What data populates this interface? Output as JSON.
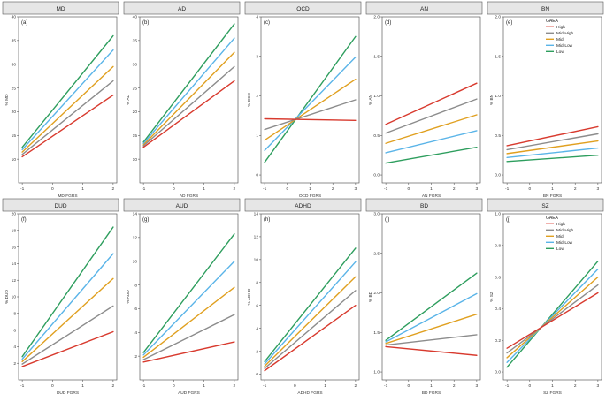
{
  "legend": {
    "title": "GAEA",
    "levels": [
      "High",
      "Mid-High",
      "Mid",
      "Mid-Low",
      "Low"
    ],
    "colors": [
      "#d83a2e",
      "#8c8c8c",
      "#e0a020",
      "#5ab4e8",
      "#2e9e5e"
    ]
  },
  "chart_data": [
    {
      "type": "line",
      "title": "MD",
      "tag": "(a)",
      "xlabel": "MD FGRS",
      "ylabel": "% MD",
      "xlim": [
        -1,
        2
      ],
      "ylim": [
        5,
        40
      ],
      "xticks": [
        -1,
        0,
        1,
        2
      ],
      "xtick_labels": [
        "-1",
        "0",
        "1",
        "2"
      ],
      "yticks": [
        10,
        15,
        20,
        25,
        30,
        35,
        40
      ],
      "ytick_labels": [
        "10",
        "15",
        "20",
        "25",
        "30",
        "35",
        "40"
      ],
      "series": [
        {
          "name": "High",
          "x": [
            -1,
            2
          ],
          "y": [
            10.5,
            23.5
          ]
        },
        {
          "name": "Mid-High",
          "x": [
            -1,
            2
          ],
          "y": [
            11.0,
            26.5
          ]
        },
        {
          "name": "Mid",
          "x": [
            -1,
            2
          ],
          "y": [
            11.5,
            29.5
          ]
        },
        {
          "name": "Mid-Low",
          "x": [
            -1,
            2
          ],
          "y": [
            12.0,
            33.0
          ]
        },
        {
          "name": "Low",
          "x": [
            -1,
            2
          ],
          "y": [
            12.5,
            36.0
          ]
        }
      ]
    },
    {
      "type": "line",
      "title": "AD",
      "tag": "(b)",
      "xlabel": "AD FGRS",
      "ylabel": "% AD",
      "xlim": [
        -1,
        2
      ],
      "ylim": [
        5,
        40
      ],
      "xticks": [
        -1,
        0,
        1,
        2
      ],
      "xtick_labels": [
        "-1",
        "0",
        "1",
        "2"
      ],
      "yticks": [
        10,
        15,
        20,
        25,
        30,
        35,
        40
      ],
      "ytick_labels": [
        "10",
        "15",
        "20",
        "25",
        "30",
        "35",
        "40"
      ],
      "series": [
        {
          "name": "High",
          "x": [
            -1,
            2
          ],
          "y": [
            12.5,
            26.5
          ]
        },
        {
          "name": "Mid-High",
          "x": [
            -1,
            2
          ],
          "y": [
            12.8,
            29.5
          ]
        },
        {
          "name": "Mid",
          "x": [
            -1,
            2
          ],
          "y": [
            13.0,
            32.5
          ]
        },
        {
          "name": "Mid-Low",
          "x": [
            -1,
            2
          ],
          "y": [
            13.3,
            35.5
          ]
        },
        {
          "name": "Low",
          "x": [
            -1,
            2
          ],
          "y": [
            13.6,
            38.5
          ]
        }
      ]
    },
    {
      "type": "line",
      "title": "OCD",
      "tag": "(c)",
      "xlabel": "OCD FGRS",
      "ylabel": "% OCD",
      "xlim": [
        -1,
        3
      ],
      "ylim": [
        -0.2,
        4
      ],
      "xticks": [
        -1,
        0,
        1,
        2,
        3
      ],
      "xtick_labels": [
        "-1",
        "0",
        "1",
        "2",
        "3"
      ],
      "yticks": [
        0,
        1,
        2,
        3,
        4
      ],
      "ytick_labels": [
        "0",
        "1",
        "2",
        "3",
        "4"
      ],
      "series": [
        {
          "name": "High",
          "x": [
            -1,
            3
          ],
          "y": [
            1.42,
            1.38
          ]
        },
        {
          "name": "Mid-High",
          "x": [
            -1,
            3
          ],
          "y": [
            1.15,
            1.9
          ]
        },
        {
          "name": "Mid",
          "x": [
            -1,
            3
          ],
          "y": [
            0.88,
            2.42
          ]
        },
        {
          "name": "Mid-Low",
          "x": [
            -1,
            3
          ],
          "y": [
            0.62,
            2.98
          ]
        },
        {
          "name": "Low",
          "x": [
            -1,
            3
          ],
          "y": [
            0.32,
            3.5
          ]
        }
      ]
    },
    {
      "type": "line",
      "title": "AN",
      "tag": "(d)",
      "xlabel": "AN FGRS",
      "ylabel": "% AN",
      "xlim": [
        -1,
        3
      ],
      "ylim": [
        -0.1,
        2.0
      ],
      "xticks": [
        -1,
        0,
        1,
        2,
        3
      ],
      "xtick_labels": [
        "-1",
        "0",
        "1",
        "2",
        "3"
      ],
      "yticks": [
        0.0,
        0.5,
        1.0,
        1.5,
        2.0
      ],
      "ytick_labels": [
        "0.0",
        "0.5",
        "1.0",
        "1.5",
        "2.0"
      ],
      "series": [
        {
          "name": "High",
          "x": [
            -1,
            3
          ],
          "y": [
            0.64,
            1.16
          ]
        },
        {
          "name": "Mid-High",
          "x": [
            -1,
            3
          ],
          "y": [
            0.53,
            0.96
          ]
        },
        {
          "name": "Mid",
          "x": [
            -1,
            3
          ],
          "y": [
            0.4,
            0.76
          ]
        },
        {
          "name": "Mid-Low",
          "x": [
            -1,
            3
          ],
          "y": [
            0.28,
            0.56
          ]
        },
        {
          "name": "Low",
          "x": [
            -1,
            3
          ],
          "y": [
            0.15,
            0.35
          ]
        }
      ]
    },
    {
      "type": "line",
      "title": "BN",
      "tag": "(e)",
      "xlabel": "BN FGRS",
      "ylabel": "% BN",
      "xlim": [
        -1,
        3
      ],
      "ylim": [
        -0.1,
        2.0
      ],
      "xticks": [
        -1,
        0,
        1,
        2,
        3
      ],
      "xtick_labels": [
        "-1",
        "0",
        "1",
        "2",
        "3"
      ],
      "yticks": [
        0.0,
        0.5,
        1.0,
        1.5,
        2.0
      ],
      "ytick_labels": [
        "0.0",
        "0.5",
        "1.0",
        "1.5",
        "2.0"
      ],
      "legend": true,
      "series": [
        {
          "name": "High",
          "x": [
            -1,
            3
          ],
          "y": [
            0.37,
            0.61
          ]
        },
        {
          "name": "Mid-High",
          "x": [
            -1,
            3
          ],
          "y": [
            0.32,
            0.52
          ]
        },
        {
          "name": "Mid",
          "x": [
            -1,
            3
          ],
          "y": [
            0.27,
            0.43
          ]
        },
        {
          "name": "Mid-Low",
          "x": [
            -1,
            3
          ],
          "y": [
            0.22,
            0.34
          ]
        },
        {
          "name": "Low",
          "x": [
            -1,
            3
          ],
          "y": [
            0.17,
            0.25
          ]
        }
      ]
    },
    {
      "type": "line",
      "title": "DUD",
      "tag": "(f)",
      "xlabel": "DUD FGRS",
      "ylabel": "% DUD",
      "xlim": [
        -1,
        2
      ],
      "ylim": [
        0,
        20
      ],
      "xticks": [
        -1,
        0,
        1,
        2
      ],
      "xtick_labels": [
        "-1",
        "0",
        "1",
        "2"
      ],
      "yticks": [
        2,
        4,
        6,
        8,
        10,
        12,
        14,
        16,
        18,
        20
      ],
      "ytick_labels": [
        "2",
        "4",
        "6",
        "8",
        "10",
        "12",
        "14",
        "16",
        "18",
        "20"
      ],
      "series": [
        {
          "name": "High",
          "x": [
            -1,
            2
          ],
          "y": [
            1.6,
            5.8
          ]
        },
        {
          "name": "Mid-High",
          "x": [
            -1,
            2
          ],
          "y": [
            1.9,
            8.9
          ]
        },
        {
          "name": "Mid",
          "x": [
            -1,
            2
          ],
          "y": [
            2.2,
            12.2
          ]
        },
        {
          "name": "Mid-Low",
          "x": [
            -1,
            2
          ],
          "y": [
            2.5,
            15.2
          ]
        },
        {
          "name": "Low",
          "x": [
            -1,
            2
          ],
          "y": [
            2.8,
            18.4
          ]
        }
      ]
    },
    {
      "type": "line",
      "title": "AUD",
      "tag": "(g)",
      "xlabel": "AUD FGRS",
      "ylabel": "% AUD",
      "xlim": [
        -1,
        2
      ],
      "ylim": [
        0,
        14
      ],
      "xticks": [
        -1,
        0,
        1,
        2
      ],
      "xtick_labels": [
        "-1",
        "0",
        "1",
        "2"
      ],
      "yticks": [
        2,
        4,
        6,
        8,
        10,
        12,
        14
      ],
      "ytick_labels": [
        "2",
        "4",
        "6",
        "8",
        "10",
        "12",
        "14"
      ],
      "series": [
        {
          "name": "High",
          "x": [
            -1,
            2
          ],
          "y": [
            1.5,
            3.2
          ]
        },
        {
          "name": "Mid-High",
          "x": [
            -1,
            2
          ],
          "y": [
            1.7,
            5.5
          ]
        },
        {
          "name": "Mid",
          "x": [
            -1,
            2
          ],
          "y": [
            1.9,
            7.8
          ]
        },
        {
          "name": "Mid-Low",
          "x": [
            -1,
            2
          ],
          "y": [
            2.1,
            10.0
          ]
        },
        {
          "name": "Low",
          "x": [
            -1,
            2
          ],
          "y": [
            2.3,
            12.3
          ]
        }
      ]
    },
    {
      "type": "line",
      "title": "ADHD",
      "tag": "(h)",
      "xlabel": "ADHD FGRS",
      "ylabel": "% ADHD",
      "xlim": [
        -1,
        2
      ],
      "ylim": [
        -0.5,
        14
      ],
      "xticks": [
        -1,
        0,
        1,
        2
      ],
      "xtick_labels": [
        "-1",
        "0",
        "1",
        "2"
      ],
      "yticks": [
        0,
        2,
        4,
        6,
        8,
        10,
        12,
        14
      ],
      "ytick_labels": [
        "0",
        "2",
        "4",
        "6",
        "8",
        "10",
        "12",
        "14"
      ],
      "series": [
        {
          "name": "High",
          "x": [
            -1,
            2
          ],
          "y": [
            0.3,
            6.0
          ]
        },
        {
          "name": "Mid-High",
          "x": [
            -1,
            2
          ],
          "y": [
            0.5,
            7.3
          ]
        },
        {
          "name": "Mid",
          "x": [
            -1,
            2
          ],
          "y": [
            0.7,
            8.5
          ]
        },
        {
          "name": "Mid-Low",
          "x": [
            -1,
            2
          ],
          "y": [
            0.9,
            9.8
          ]
        },
        {
          "name": "Low",
          "x": [
            -1,
            2
          ],
          "y": [
            1.1,
            11.0
          ]
        }
      ]
    },
    {
      "type": "line",
      "title": "BD",
      "tag": "(i)",
      "xlabel": "BD FGRS",
      "ylabel": "% BD",
      "xlim": [
        -1,
        3
      ],
      "ylim": [
        0.9,
        3.0
      ],
      "xticks": [
        -1,
        0,
        1,
        2,
        3
      ],
      "xtick_labels": [
        "-1",
        "0",
        "1",
        "2",
        "3"
      ],
      "yticks": [
        1.0,
        1.5,
        2.0,
        2.5,
        3.0
      ],
      "ytick_labels": [
        "1.0",
        "1.5",
        "2.0",
        "2.5",
        "3.0"
      ],
      "series": [
        {
          "name": "High",
          "x": [
            -1,
            3
          ],
          "y": [
            1.32,
            1.21
          ]
        },
        {
          "name": "Mid-High",
          "x": [
            -1,
            3
          ],
          "y": [
            1.34,
            1.47
          ]
        },
        {
          "name": "Mid",
          "x": [
            -1,
            3
          ],
          "y": [
            1.36,
            1.73
          ]
        },
        {
          "name": "Mid-Low",
          "x": [
            -1,
            3
          ],
          "y": [
            1.38,
            1.99
          ]
        },
        {
          "name": "Low",
          "x": [
            -1,
            3
          ],
          "y": [
            1.4,
            2.25
          ]
        }
      ]
    },
    {
      "type": "line",
      "title": "SZ",
      "tag": "(j)",
      "xlabel": "SZ FGRS",
      "ylabel": "% SZ",
      "xlim": [
        -1,
        3
      ],
      "ylim": [
        -0.05,
        1.0
      ],
      "xticks": [
        -1,
        0,
        1,
        2,
        3
      ],
      "xtick_labels": [
        "-1",
        "0",
        "1",
        "2",
        "3"
      ],
      "yticks": [
        0.0,
        0.2,
        0.4,
        0.6,
        0.8,
        1.0
      ],
      "ytick_labels": [
        "0.0",
        "0.2",
        "0.4",
        "0.6",
        "0.8",
        "1.0"
      ],
      "legend": true,
      "series": [
        {
          "name": "High",
          "x": [
            -1,
            3
          ],
          "y": [
            0.15,
            0.5
          ]
        },
        {
          "name": "Mid-High",
          "x": [
            -1,
            3
          ],
          "y": [
            0.12,
            0.55
          ]
        },
        {
          "name": "Mid",
          "x": [
            -1,
            3
          ],
          "y": [
            0.09,
            0.6
          ]
        },
        {
          "name": "Mid-Low",
          "x": [
            -1,
            3
          ],
          "y": [
            0.06,
            0.65
          ]
        },
        {
          "name": "Low",
          "x": [
            -1,
            3
          ],
          "y": [
            0.03,
            0.7
          ]
        }
      ]
    }
  ]
}
